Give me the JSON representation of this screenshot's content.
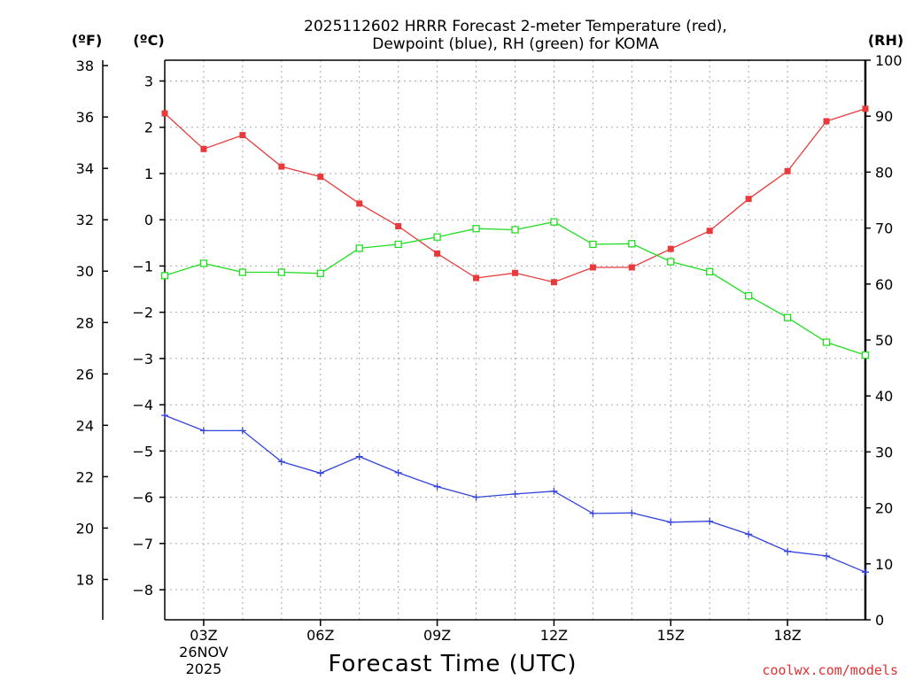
{
  "chart_data": {
    "type": "line",
    "title_line1": "2025112602 HRRR Forecast 2-meter Temperature (red),",
    "title_line2": "Dewpoint (blue), RH (green) for KOMA",
    "xlabel": "Forecast Time (UTC)",
    "credit": "coolwx.com/models",
    "units": {
      "fahrenheit": "(ºF)",
      "celsius": "(ºC)",
      "rh": "(RH)"
    },
    "x_hours": [
      2,
      3,
      4,
      5,
      6,
      7,
      8,
      9,
      10,
      11,
      12,
      13,
      14,
      15,
      16,
      17,
      18,
      19,
      20
    ],
    "x_range": [
      2,
      20
    ],
    "x_ticks": [
      {
        "hour": 3,
        "label": "03Z",
        "date": "26NOV",
        "year": "2025"
      },
      {
        "hour": 6,
        "label": "06Z"
      },
      {
        "hour": 9,
        "label": "09Z"
      },
      {
        "hour": 12,
        "label": "12Z"
      },
      {
        "hour": 15,
        "label": "15Z"
      },
      {
        "hour": 18,
        "label": "18Z"
      }
    ],
    "y_celsius_range": [
      -8.65,
      3.45
    ],
    "y_celsius_ticks": [
      3,
      2,
      1,
      0,
      -1,
      -2,
      -3,
      -4,
      -5,
      -6,
      -7,
      -8
    ],
    "y_celsius_tick_labels": [
      "3",
      "2",
      "1",
      "0",
      "−1",
      "−2",
      "−3",
      "−4",
      "−5",
      "−6",
      "−7",
      "−8"
    ],
    "y_fahrenheit_ticks": [
      38,
      36,
      34,
      32,
      30,
      28,
      26,
      24,
      22,
      20,
      18
    ],
    "y_fahrenheit_tick_labels": [
      "38",
      "36",
      "34",
      "32",
      "30",
      "28",
      "26",
      "24",
      "22",
      "20",
      "18"
    ],
    "y_rh_range": [
      0,
      100
    ],
    "y_rh_ticks": [
      100,
      90,
      80,
      70,
      60,
      50,
      40,
      30,
      20,
      10,
      0
    ],
    "y_rh_tick_labels": [
      "100",
      "90",
      "80",
      "70",
      "60",
      "50",
      "40",
      "30",
      "20",
      "10",
      "0"
    ],
    "grid": true,
    "series": [
      {
        "name": "2-meter Temperature",
        "axis": "celsius",
        "color": "#e83a3a",
        "marker": "filled-square",
        "values": [
          2.3,
          1.53,
          1.83,
          1.15,
          0.93,
          0.35,
          -0.14,
          -0.73,
          -1.26,
          -1.15,
          -1.35,
          -1.03,
          -1.03,
          -0.63,
          -0.24,
          0.45,
          1.05,
          2.13,
          2.4
        ]
      },
      {
        "name": "Dewpoint",
        "axis": "celsius",
        "color": "#3344dd",
        "marker": "plus",
        "values": [
          -4.23,
          -4.56,
          -4.56,
          -5.23,
          -5.48,
          -5.12,
          -5.47,
          -5.77,
          -6.0,
          -5.93,
          -5.87,
          -6.35,
          -6.34,
          -6.54,
          -6.52,
          -6.8,
          -7.17,
          -7.27,
          -7.62
        ]
      },
      {
        "name": "RH",
        "axis": "rh",
        "color": "#22dd22",
        "marker": "open-square",
        "values": [
          61.5,
          63.7,
          62.1,
          62.1,
          61.9,
          66.4,
          67.1,
          68.4,
          69.9,
          69.7,
          71.1,
          67.1,
          67.2,
          64.0,
          62.2,
          57.9,
          54.0,
          49.6,
          47.3
        ]
      }
    ]
  }
}
